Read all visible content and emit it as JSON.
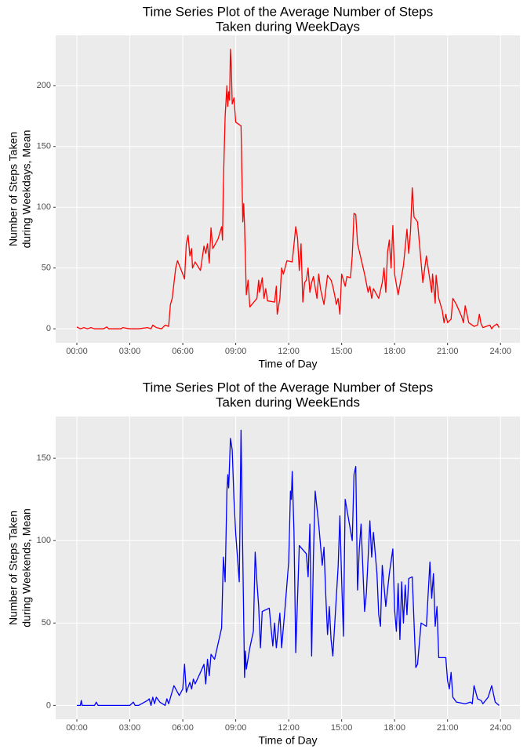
{
  "chart_data": [
    {
      "type": "line",
      "title": [
        "Time Series Plot of the Average Number of Steps",
        "Taken during WeekDays"
      ],
      "xlabel": "Time of Day",
      "ylabel": [
        "Number of Steps Taken",
        "during Weekdays, Mean"
      ],
      "color": "#ff0000",
      "x": [
        0,
        0.2,
        0.4,
        0.6,
        0.8,
        1,
        1.5,
        1.7,
        1.8,
        2.5,
        2.6,
        3,
        3.5,
        4,
        4.2,
        4.3,
        4.5,
        4.8,
        5,
        5.2,
        5.3,
        5.4,
        5.6,
        5.7,
        6.0,
        6.1,
        6.2,
        6.3,
        6.4,
        6.5,
        6.55,
        6.7,
        7.0,
        7.2,
        7.3,
        7.4,
        7.5,
        7.6,
        7.7,
        8.0,
        8.2,
        8.25,
        8.3,
        8.4,
        8.5,
        8.55,
        8.6,
        8.65,
        8.7,
        8.75,
        8.8,
        8.9,
        9.0,
        9.3,
        9.4,
        9.45,
        9.5,
        9.6,
        9.7,
        9.8,
        10.2,
        10.3,
        10.35,
        10.5,
        10.6,
        10.7,
        10.8,
        11.2,
        11.3,
        11.35,
        11.5,
        11.6,
        11.7,
        11.9,
        12.2,
        12.4,
        12.5,
        12.6,
        12.7,
        12.8,
        12.9,
        13.0,
        13.1,
        13.2,
        13.3,
        13.4,
        13.6,
        13.7,
        13.8,
        14.0,
        14.2,
        14.4,
        14.5,
        14.6,
        14.7,
        14.8,
        14.9,
        15.0,
        15.2,
        15.3,
        15.5,
        15.6,
        15.7,
        15.8,
        15.9,
        16.3,
        16.5,
        16.6,
        16.7,
        16.8,
        17.1,
        17.3,
        17.4,
        17.5,
        17.6,
        17.7,
        17.8,
        17.9,
        18.0,
        18.2,
        18.5,
        18.7,
        18.8,
        18.9,
        19.0,
        19.1,
        19.3,
        19.6,
        19.8,
        20.0,
        20.1,
        20.15,
        20.3,
        20.35,
        20.5,
        20.7,
        20.8,
        20.9,
        21.0,
        21.2,
        21.3,
        21.5,
        21.8,
        21.9,
        22.0,
        22.2,
        22.5,
        22.7,
        22.8,
        22.9,
        23.0,
        23.4,
        23.5,
        23.6,
        23.8,
        23.92
      ],
      "values": [
        1.5,
        0,
        1,
        0,
        1,
        0,
        0,
        1.5,
        0,
        0,
        1,
        0,
        0,
        1,
        0,
        3,
        1,
        0,
        3,
        2,
        20,
        25,
        50,
        56,
        45,
        41,
        70,
        77,
        60,
        66,
        50,
        55,
        48,
        68,
        62,
        70,
        54,
        83,
        66,
        74,
        84,
        73,
        120,
        175,
        200,
        183,
        195,
        188,
        230,
        215,
        185,
        190,
        170,
        167,
        88,
        103,
        85,
        28,
        40,
        18,
        25,
        40,
        30,
        42,
        25,
        33,
        23,
        22,
        35,
        12,
        25,
        50,
        45,
        56,
        55,
        84,
        75,
        48,
        70,
        22,
        38,
        40,
        50,
        30,
        38,
        43,
        25,
        45,
        33,
        20,
        44,
        40,
        35,
        28,
        20,
        25,
        12,
        45,
        35,
        43,
        42,
        60,
        95,
        94,
        70,
        45,
        30,
        35,
        25,
        33,
        25,
        38,
        50,
        30,
        63,
        73,
        50,
        85,
        45,
        28,
        52,
        82,
        62,
        80,
        116,
        92,
        88,
        38,
        60,
        40,
        30,
        45,
        21,
        44,
        25,
        15,
        5,
        12,
        5,
        8,
        25,
        20,
        10,
        5,
        19,
        5,
        2,
        3,
        12,
        4,
        1,
        3,
        0,
        2,
        4,
        1
      ],
      "xlim": [
        -1.2,
        25.1
      ],
      "ylim": [
        -11.5,
        241.5
      ],
      "xticks": [
        {
          "value": 0,
          "label": "00:00"
        },
        {
          "value": 3,
          "label": "03:00"
        },
        {
          "value": 6,
          "label": "06:00"
        },
        {
          "value": 9,
          "label": "09:00"
        },
        {
          "value": 12,
          "label": "12:00"
        },
        {
          "value": 15,
          "label": "15:00"
        },
        {
          "value": 18,
          "label": "18:00"
        },
        {
          "value": 21,
          "label": "21:00"
        },
        {
          "value": 24,
          "label": "24:00"
        }
      ],
      "yticks": [
        0,
        50,
        100,
        150,
        200
      ],
      "grid": true
    },
    {
      "type": "line",
      "title": [
        "Time Series Plot of the Average Number of Steps",
        "Taken during WeekEnds"
      ],
      "xlabel": "Time of Day",
      "ylabel": [
        "Number of Steps Taken",
        "during Weekends, Mean"
      ],
      "color": "#0000ff",
      "x": [
        0,
        0.2,
        0.25,
        0.3,
        1,
        1.1,
        1.2,
        2.5,
        3,
        3.2,
        3.3,
        3.5,
        4,
        4.1,
        4.2,
        4.3,
        4.4,
        4.5,
        4.7,
        5.0,
        5.1,
        5.2,
        5.5,
        5.8,
        6.0,
        6.1,
        6.2,
        6.4,
        6.5,
        6.6,
        6.7,
        7.0,
        7.2,
        7.3,
        7.4,
        7.5,
        7.6,
        7.8,
        8.2,
        8.3,
        8.4,
        8.5,
        8.55,
        8.6,
        8.7,
        8.8,
        8.9,
        9.0,
        9.2,
        9.3,
        9.4,
        9.5,
        9.55,
        9.6,
        9.8,
        10.0,
        10.1,
        10.2,
        10.3,
        10.4,
        10.5,
        10.9,
        11.0,
        11.1,
        11.2,
        11.3,
        11.5,
        11.6,
        11.8,
        12.0,
        12.1,
        12.15,
        12.2,
        12.3,
        12.4,
        12.6,
        13.0,
        13.1,
        13.2,
        13.3,
        13.4,
        13.5,
        13.7,
        13.9,
        14.0,
        14.1,
        14.2,
        14.3,
        14.4,
        14.5,
        14.8,
        14.9,
        15.0,
        15.1,
        15.2,
        15.6,
        15.7,
        15.8,
        15.9,
        16.0,
        16.1,
        16.3,
        16.4,
        16.6,
        16.7,
        16.8,
        17.0,
        17.1,
        17.2,
        17.3,
        17.5,
        17.7,
        17.9,
        18.0,
        18.1,
        18.2,
        18.3,
        18.4,
        18.5,
        18.6,
        18.7,
        18.8,
        19.0,
        19.2,
        19.3,
        19.5,
        19.8,
        20.0,
        20.1,
        20.2,
        20.3,
        20.4,
        20.5,
        20.9,
        21.0,
        21.1,
        21.2,
        21.3,
        21.5,
        22.0,
        22.3,
        22.4,
        22.5,
        22.7,
        22.9,
        23.0,
        23.3,
        23.5,
        23.7,
        23.92
      ],
      "values": [
        0,
        0,
        3,
        0,
        0,
        2,
        0,
        0,
        0,
        2,
        0,
        0,
        3,
        4,
        0,
        5,
        1,
        5,
        2,
        0,
        4,
        1,
        12,
        6,
        10,
        25,
        8,
        14,
        10,
        16,
        13,
        20,
        25,
        13,
        28,
        18,
        31,
        28,
        47,
        90,
        75,
        130,
        140,
        132,
        162,
        155,
        125,
        104,
        75,
        167,
        90,
        17,
        33,
        22,
        35,
        45,
        93,
        75,
        60,
        35,
        57,
        59,
        47,
        36,
        50,
        35,
        56,
        35,
        60,
        87,
        130,
        125,
        142,
        105,
        32,
        97,
        92,
        78,
        110,
        30,
        90,
        130,
        110,
        85,
        96,
        67,
        43,
        60,
        40,
        30,
        84,
        115,
        76,
        42,
        125,
        100,
        140,
        145,
        70,
        95,
        110,
        57,
        68,
        112,
        90,
        105,
        80,
        55,
        48,
        85,
        60,
        80,
        95,
        58,
        45,
        74,
        40,
        75,
        50,
        73,
        55,
        77,
        78,
        23,
        25,
        50,
        48,
        87,
        65,
        80,
        48,
        60,
        29,
        29,
        15,
        10,
        20,
        5,
        2,
        1,
        2,
        1,
        12,
        4,
        3,
        1,
        5,
        12,
        2,
        0
      ],
      "xlim": [
        -1.2,
        25.1
      ],
      "ylim": [
        -8.4,
        175.3
      ],
      "xticks": [
        {
          "value": 0,
          "label": "00:00"
        },
        {
          "value": 3,
          "label": "03:00"
        },
        {
          "value": 6,
          "label": "06:00"
        },
        {
          "value": 9,
          "label": "09:00"
        },
        {
          "value": 12,
          "label": "12:00"
        },
        {
          "value": 15,
          "label": "15:00"
        },
        {
          "value": 18,
          "label": "18:00"
        },
        {
          "value": 21,
          "label": "21:00"
        },
        {
          "value": 24,
          "label": "24:00"
        }
      ],
      "yticks": [
        0,
        50,
        100,
        150
      ],
      "grid": true
    }
  ]
}
